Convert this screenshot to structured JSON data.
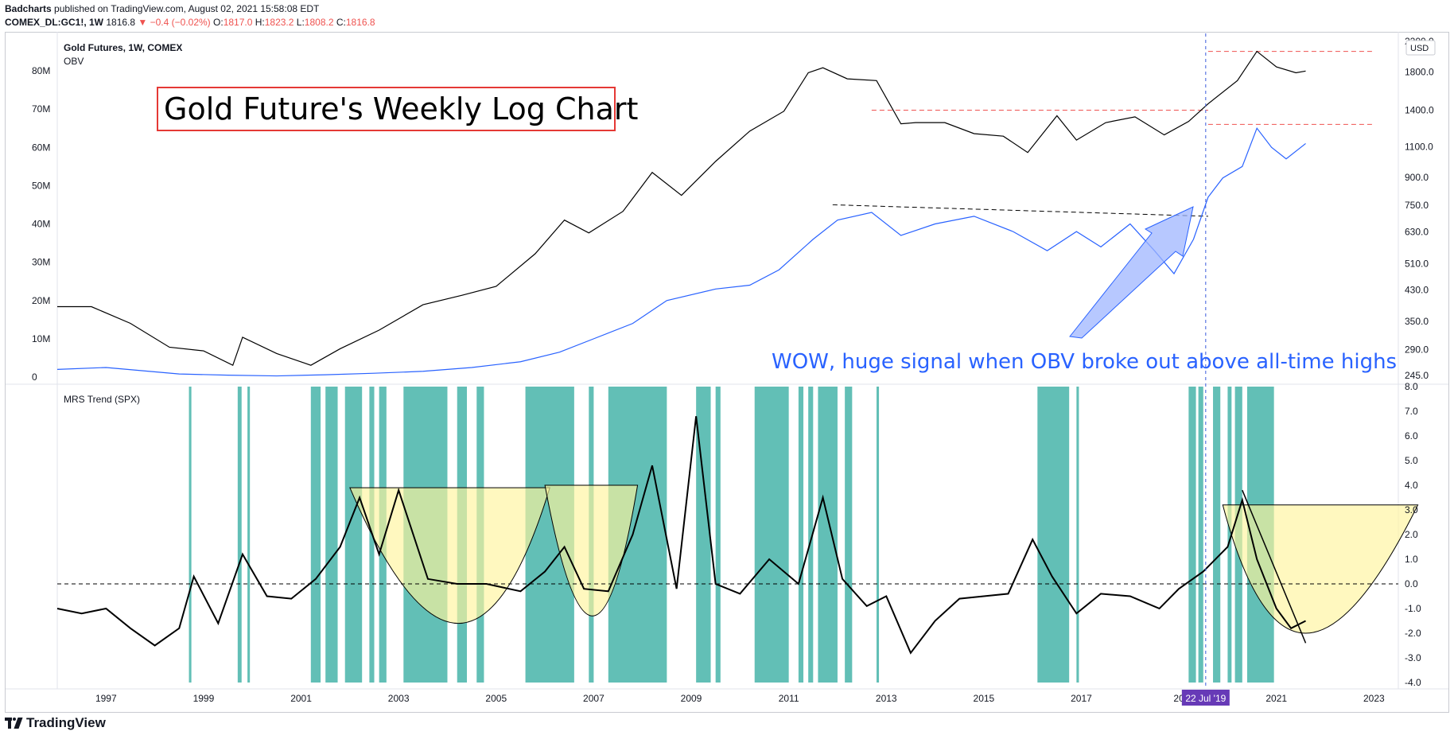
{
  "header": {
    "publisher": "Badcharts",
    "published_text": "published on TradingView.com, August 02, 2021 15:58:08 EDT",
    "symbol": "COMEX_DL:GC1!, 1W",
    "last": "1816.8",
    "change": "▼ −0.4 (−0.02%)",
    "o_label": "O:",
    "o_val": "1817.0",
    "h_label": "H:",
    "h_val": "1823.2",
    "l_label": "L:",
    "l_val": "1808.2",
    "c_label": "C:",
    "c_val": "1816.8"
  },
  "footer": {
    "brand": "TradingView"
  },
  "colors": {
    "price": "#000000",
    "obv": "#2962ff",
    "band": "#26a69a",
    "bowl": "#fff59d",
    "annotation_red": "#ef5350",
    "blue_text": "#2962ff",
    "date_badge": "#673ab7"
  },
  "chart_data": [
    {
      "type": "line",
      "title": "Gold Future's Weekly Log Chart",
      "legend": [
        "Gold Futures, 1W, COMEX",
        "OBV"
      ],
      "currency_badge": "USD",
      "left_axis_ticks": [
        "80M",
        "70M",
        "60M",
        "50M",
        "40M",
        "30M",
        "20M",
        "10M",
        "0"
      ],
      "right_axis_ticks": [
        "2200.0",
        "1800.0",
        "1400.0",
        "1100.0",
        "900.0",
        "750.0",
        "630.0",
        "510.0",
        "430.0",
        "350.0",
        "290.0",
        "245.0"
      ],
      "x_ticks": [
        "1997",
        "1999",
        "2001",
        "2003",
        "2005",
        "2007",
        "2009",
        "2011",
        "2013",
        "2015",
        "2017",
        "20",
        "2021",
        "2023"
      ],
      "crosshair_date": "22 Jul '19",
      "annotation": "WOW, huge signal when OBV broke out above all-time highs",
      "series": [
        {
          "name": "Gold Futures, 1W, COMEX",
          "scale": "log",
          "x": [
            1996.0,
            1996.7,
            1997.5,
            1998.3,
            1999.0,
            1999.6,
            1999.8,
            2000.5,
            2001.2,
            2001.8,
            2002.6,
            2003.5,
            2004.3,
            2005.0,
            2005.8,
            2006.4,
            2006.9,
            2007.6,
            2008.2,
            2008.8,
            2009.5,
            2010.2,
            2010.9,
            2011.4,
            2011.7,
            2012.2,
            2012.8,
            2013.3,
            2013.6,
            2014.2,
            2014.8,
            2015.4,
            2015.9,
            2016.5,
            2016.9,
            2017.5,
            2018.1,
            2018.7,
            2019.2,
            2019.6,
            2020.2,
            2020.6,
            2021.0,
            2021.4,
            2021.6
          ],
          "y": [
            385,
            385,
            345,
            295,
            288,
            262,
            315,
            283,
            262,
            292,
            330,
            390,
            415,
            440,
            545,
            680,
            625,
            720,
            930,
            800,
            1000,
            1220,
            1390,
            1790,
            1850,
            1720,
            1700,
            1280,
            1290,
            1290,
            1200,
            1180,
            1060,
            1350,
            1150,
            1290,
            1340,
            1190,
            1300,
            1460,
            1700,
            2060,
            1860,
            1790,
            1810
          ]
        },
        {
          "name": "OBV",
          "scale": "linear",
          "x": [
            1996.0,
            1997.0,
            1998.5,
            1999.5,
            2000.5,
            2001.5,
            2002.5,
            2003.5,
            2004.5,
            2005.5,
            2006.3,
            2007.0,
            2007.8,
            2008.5,
            2009.5,
            2010.2,
            2010.8,
            2011.5,
            2012.0,
            2012.7,
            2013.3,
            2014.0,
            2014.8,
            2015.6,
            2016.3,
            2016.9,
            2017.4,
            2018.0,
            2018.5,
            2018.9,
            2019.3,
            2019.6,
            2019.9,
            2020.3,
            2020.6,
            2020.9,
            2021.2,
            2021.6
          ],
          "y": [
            2,
            2.5,
            0.8,
            0.5,
            0.3,
            0.6,
            1,
            1.5,
            2.5,
            4,
            6.5,
            10,
            14,
            20,
            23,
            24,
            28,
            36,
            41,
            43,
            37,
            40,
            42,
            38,
            33,
            38,
            34,
            40,
            33,
            27,
            36,
            47,
            52,
            55,
            65,
            60,
            57,
            61
          ]
        }
      ],
      "resistance_lines": [
        {
          "label": "price_ath_line",
          "x": [
            2019.6,
            2023.0
          ],
          "y": [
            2060,
            2060
          ]
        },
        {
          "label": "price_range_top",
          "x": [
            2012.7,
            2019.6
          ],
          "y": [
            1400,
            1400
          ]
        },
        {
          "label": "obv_ath_line",
          "x": [
            2019.6,
            2023.0
          ],
          "y": [
            66,
            66
          ]
        },
        {
          "label": "obv_trend_line",
          "x": [
            2011.9,
            2019.6
          ],
          "y": [
            45,
            42
          ]
        }
      ]
    },
    {
      "type": "line",
      "title": "MRS Trend (SPX)",
      "y_ticks": [
        "8.0",
        "7.0",
        "6.0",
        "5.0",
        "4.0",
        "3.0",
        "2.0",
        "1.0",
        "0.0",
        "-1.0",
        "-2.0",
        "-3.0",
        "-4.0"
      ],
      "ylim": [
        -4,
        8
      ],
      "zero_line": 0,
      "x": [
        1996.0,
        1996.5,
        1997.0,
        1997.5,
        1998.0,
        1998.5,
        1998.8,
        1999.3,
        1999.8,
        2000.3,
        2000.8,
        2001.3,
        2001.8,
        2002.2,
        2002.6,
        2003.0,
        2003.6,
        2004.2,
        2004.8,
        2005.5,
        2006.0,
        2006.4,
        2006.8,
        2007.3,
        2007.8,
        2008.2,
        2008.7,
        2009.1,
        2009.5,
        2010.0,
        2010.6,
        2011.2,
        2011.7,
        2012.1,
        2012.6,
        2013.0,
        2013.5,
        2014.0,
        2014.5,
        2015.0,
        2015.5,
        2016.0,
        2016.4,
        2016.9,
        2017.4,
        2018.0,
        2018.6,
        2019.0,
        2019.5,
        2020.0,
        2020.3,
        2020.6,
        2021.0,
        2021.3,
        2021.6
      ],
      "y": [
        -1.0,
        -1.2,
        -1.0,
        -1.8,
        -2.5,
        -1.8,
        0.3,
        -1.6,
        1.2,
        -0.5,
        -0.6,
        0.2,
        1.5,
        3.5,
        1.2,
        3.8,
        0.2,
        0.0,
        0.0,
        -0.3,
        0.5,
        1.5,
        -0.2,
        -0.3,
        2.0,
        4.8,
        -0.2,
        6.8,
        0.0,
        -0.4,
        1.0,
        0.0,
        3.5,
        0.2,
        -0.9,
        -0.5,
        -2.8,
        -1.5,
        -0.6,
        -0.5,
        -0.4,
        1.8,
        0.3,
        -1.2,
        -0.4,
        -0.5,
        -1.0,
        -0.2,
        0.5,
        1.5,
        3.4,
        1.0,
        -1.0,
        -1.8,
        -1.5
      ],
      "bands": [
        [
          1998.7,
          1998.75
        ],
        [
          1999.7,
          1999.78
        ],
        [
          1999.9,
          1999.95
        ],
        [
          2001.2,
          2001.4
        ],
        [
          2001.5,
          2001.75
        ],
        [
          2001.9,
          2002.25
        ],
        [
          2002.4,
          2002.5
        ],
        [
          2002.6,
          2002.75
        ],
        [
          2003.1,
          2004.0
        ],
        [
          2004.2,
          2004.4
        ],
        [
          2004.6,
          2004.75
        ],
        [
          2005.6,
          2006.6
        ],
        [
          2006.9,
          2007.0
        ],
        [
          2007.3,
          2008.5
        ],
        [
          2009.1,
          2009.4
        ],
        [
          2009.5,
          2009.6
        ],
        [
          2010.3,
          2011.0
        ],
        [
          2011.2,
          2011.3
        ],
        [
          2011.4,
          2011.5
        ],
        [
          2011.6,
          2012.0
        ],
        [
          2012.15,
          2012.3
        ],
        [
          2012.8,
          2012.85
        ],
        [
          2016.1,
          2016.75
        ],
        [
          2016.9,
          2016.95
        ],
        [
          2019.2,
          2019.35
        ],
        [
          2019.4,
          2019.5
        ],
        [
          2019.7,
          2019.85
        ],
        [
          2020.0,
          2020.08
        ],
        [
          2020.15,
          2020.3
        ],
        [
          2020.4,
          2020.95
        ]
      ],
      "bowls": [
        {
          "x_left": 2002.0,
          "x_right": 2006.1,
          "x_bottom": 2004.4,
          "y_top": 3.9,
          "y_bottom": -1.6
        },
        {
          "x_left": 2006.0,
          "x_right": 2007.9,
          "x_bottom": 2007.0,
          "y_top": 4.0,
          "y_bottom": -1.3
        },
        {
          "x_left": 2019.9,
          "x_right": 2023.9,
          "x_bottom": 2021.3,
          "y_top": 3.2,
          "y_bottom": -2.0
        }
      ],
      "trendline": {
        "x": [
          2020.3,
          2021.6
        ],
        "y": [
          3.8,
          -2.4
        ]
      }
    }
  ]
}
